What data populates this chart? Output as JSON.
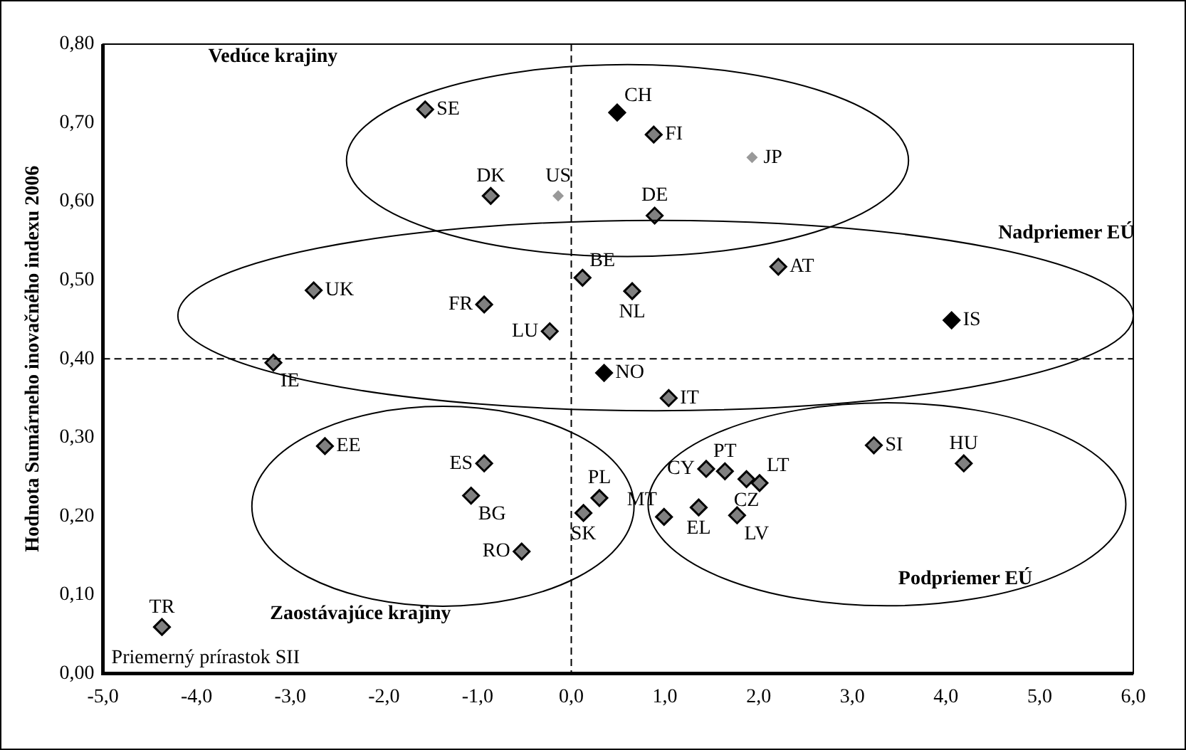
{
  "chart_data": {
    "type": "scatter",
    "ylabel": "Hodnota Sumárneho inovačného indexu 2006",
    "xlim": [
      -5,
      6
    ],
    "xticks": [
      {
        "value": -5,
        "label": "-5,0"
      },
      {
        "value": -4,
        "label": "-4,0"
      },
      {
        "value": -3,
        "label": "-3,0"
      },
      {
        "value": -2,
        "label": "-2,0"
      },
      {
        "value": -1,
        "label": "-1,0"
      },
      {
        "value": 0,
        "label": "0,0"
      },
      {
        "value": 1,
        "label": "1,0"
      },
      {
        "value": 2,
        "label": "2,0"
      },
      {
        "value": 3,
        "label": "3,0"
      },
      {
        "value": 4,
        "label": "4,0"
      },
      {
        "value": 5,
        "label": "5,0"
      },
      {
        "value": 6,
        "label": "6,0"
      }
    ],
    "ylim": [
      0,
      0.8
    ],
    "yticks": [
      {
        "value": 0,
        "label": "0,00"
      },
      {
        "value": 0.1,
        "label": "0,10"
      },
      {
        "value": 0.2,
        "label": "0,20"
      },
      {
        "value": 0.3,
        "label": "0,30"
      },
      {
        "value": 0.4,
        "label": "0,40"
      },
      {
        "value": 0.5,
        "label": "0,50"
      },
      {
        "value": 0.6,
        "label": "0,60"
      },
      {
        "value": 0.7,
        "label": "0,70"
      },
      {
        "value": 0.8,
        "label": "0,80"
      }
    ],
    "grid": false,
    "legend": false,
    "marker": "diamond",
    "series": [
      {
        "color": "#808080",
        "x": [
          -1.56,
          0.88,
          0.89,
          -0.86,
          0.12,
          0.65,
          2.21,
          -2.75,
          -0.93,
          -0.23,
          -3.18,
          1.04,
          -2.63,
          -0.93,
          -1.07,
          -0.53,
          0.3,
          0.13,
          -4.37,
          1.44,
          1.64,
          1.87,
          2.01,
          0.99,
          1.36,
          1.77,
          3.23,
          4.19
        ],
        "values": [
          0.717,
          0.685,
          0.582,
          0.607,
          0.503,
          0.486,
          0.517,
          0.487,
          0.469,
          0.435,
          0.395,
          0.35,
          0.289,
          0.267,
          0.226,
          0.155,
          0.223,
          0.204,
          0.059,
          0.26,
          0.257,
          0.247,
          0.242,
          0.199,
          0.211,
          0.201,
          0.29,
          0.267
        ]
      },
      {
        "color": "#000000",
        "x": [
          0.49,
          0.35,
          4.06
        ],
        "values": [
          0.713,
          0.382,
          0.449
        ]
      },
      {
        "color": "#999999",
        "x": [
          -0.14,
          1.93
        ],
        "values": [
          0.607,
          0.656
        ]
      }
    ],
    "ref_lines": [
      {
        "axis": "x",
        "value": 0,
        "line_style": "dashed"
      },
      {
        "axis": "y",
        "value": 0.4,
        "line_style": "dashed"
      }
    ],
    "annotations": [
      "Vedúce krajiny",
      "Nadpriemer EÚ",
      "Zaostávajúce krajiny",
      "Podpriemer EÚ",
      "Priemerný prírastok SII",
      {
        "text": "SE",
        "x": -1.56,
        "y": 0.717
      },
      {
        "text": "FI",
        "x": 0.88,
        "y": 0.685
      },
      {
        "text": "DE",
        "x": 0.89,
        "y": 0.582
      },
      {
        "text": "DK",
        "x": -0.86,
        "y": 0.607
      },
      {
        "text": "BE",
        "x": 0.12,
        "y": 0.503
      },
      {
        "text": "NL",
        "x": 0.65,
        "y": 0.486
      },
      {
        "text": "AT",
        "x": 2.21,
        "y": 0.517
      },
      {
        "text": "UK",
        "x": -2.75,
        "y": 0.487
      },
      {
        "text": "FR",
        "x": -0.93,
        "y": 0.469
      },
      {
        "text": "LU",
        "x": -0.23,
        "y": 0.435
      },
      {
        "text": "IE",
        "x": -3.18,
        "y": 0.395
      },
      {
        "text": "IT",
        "x": 1.04,
        "y": 0.35
      },
      {
        "text": "EE",
        "x": -2.63,
        "y": 0.289
      },
      {
        "text": "ES",
        "x": -0.93,
        "y": 0.267
      },
      {
        "text": "BG",
        "x": -1.07,
        "y": 0.226
      },
      {
        "text": "RO",
        "x": -0.53,
        "y": 0.155
      },
      {
        "text": "PL",
        "x": 0.3,
        "y": 0.223
      },
      {
        "text": "SK",
        "x": 0.13,
        "y": 0.204
      },
      {
        "text": "TR",
        "x": -4.37,
        "y": 0.059
      },
      {
        "text": "CY",
        "x": 1.44,
        "y": 0.26
      },
      {
        "text": "PT",
        "x": 1.64,
        "y": 0.257
      },
      {
        "text": "CZ",
        "x": 1.87,
        "y": 0.247
      },
      {
        "text": "LT",
        "x": 2.01,
        "y": 0.242
      },
      {
        "text": "MT",
        "x": 0.99,
        "y": 0.199
      },
      {
        "text": "EL",
        "x": 1.36,
        "y": 0.211
      },
      {
        "text": "LV",
        "x": 1.77,
        "y": 0.201
      },
      {
        "text": "SI",
        "x": 3.23,
        "y": 0.29
      },
      {
        "text": "HU",
        "x": 4.19,
        "y": 0.267
      },
      {
        "text": "CH",
        "x": 0.49,
        "y": 0.713
      },
      {
        "text": "NO",
        "x": 0.35,
        "y": 0.382
      },
      {
        "text": "IS",
        "x": 4.06,
        "y": 0.449
      },
      {
        "text": "US",
        "x": -0.14,
        "y": 0.607
      },
      {
        "text": "JP",
        "x": 1.93,
        "y": 0.656
      }
    ]
  }
}
